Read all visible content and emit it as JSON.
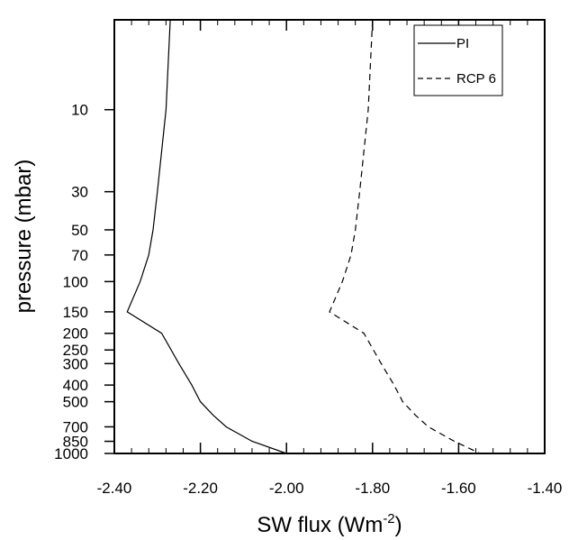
{
  "chart_data": {
    "type": "line",
    "xlabel": "SW flux (Wm",
    "xlabel_superscript": "-2",
    "xlabel_suffix": ")",
    "ylabel": "pressure (mbar)",
    "xlim": [
      -2.4,
      -1.4
    ],
    "ylim": [
      1000,
      3
    ],
    "y_scale": "log",
    "x_ticks": [
      {
        "value": -2.4,
        "label": "-2.40"
      },
      {
        "value": -2.2,
        "label": "-2.20"
      },
      {
        "value": -2.0,
        "label": "-2.00"
      },
      {
        "value": -1.8,
        "label": "-1.80"
      },
      {
        "value": -1.6,
        "label": "-1.60"
      },
      {
        "value": -1.4,
        "label": "-1.40"
      }
    ],
    "y_ticks": [
      {
        "value": 10,
        "label": "10"
      },
      {
        "value": 30,
        "label": "30"
      },
      {
        "value": 50,
        "label": "50"
      },
      {
        "value": 70,
        "label": "70"
      },
      {
        "value": 100,
        "label": "100"
      },
      {
        "value": 150,
        "label": "150"
      },
      {
        "value": 200,
        "label": "200"
      },
      {
        "value": 250,
        "label": "250"
      },
      {
        "value": 300,
        "label": "300"
      },
      {
        "value": 400,
        "label": "400"
      },
      {
        "value": 500,
        "label": "500"
      },
      {
        "value": 700,
        "label": "700"
      },
      {
        "value": 850,
        "label": "850"
      },
      {
        "value": 1000,
        "label": "1000"
      }
    ],
    "grid": false,
    "legend_position": "top-right",
    "series": [
      {
        "name": "PI",
        "style": "solid",
        "points": [
          {
            "x": -2.27,
            "y": 3
          },
          {
            "x": -2.28,
            "y": 10
          },
          {
            "x": -2.3,
            "y": 30
          },
          {
            "x": -2.31,
            "y": 50
          },
          {
            "x": -2.32,
            "y": 70
          },
          {
            "x": -2.34,
            "y": 100
          },
          {
            "x": -2.37,
            "y": 150
          },
          {
            "x": -2.29,
            "y": 200
          },
          {
            "x": -2.25,
            "y": 300
          },
          {
            "x": -2.22,
            "y": 400
          },
          {
            "x": -2.2,
            "y": 500
          },
          {
            "x": -2.17,
            "y": 600
          },
          {
            "x": -2.14,
            "y": 700
          },
          {
            "x": -2.08,
            "y": 850
          },
          {
            "x": -2.0,
            "y": 1000
          }
        ]
      },
      {
        "name": "RCP 6",
        "style": "dashed",
        "points": [
          {
            "x": -1.8,
            "y": 3
          },
          {
            "x": -1.81,
            "y": 10
          },
          {
            "x": -1.83,
            "y": 30
          },
          {
            "x": -1.84,
            "y": 50
          },
          {
            "x": -1.85,
            "y": 70
          },
          {
            "x": -1.87,
            "y": 100
          },
          {
            "x": -1.9,
            "y": 150
          },
          {
            "x": -1.82,
            "y": 200
          },
          {
            "x": -1.78,
            "y": 300
          },
          {
            "x": -1.75,
            "y": 400
          },
          {
            "x": -1.73,
            "y": 500
          },
          {
            "x": -1.7,
            "y": 600
          },
          {
            "x": -1.67,
            "y": 700
          },
          {
            "x": -1.61,
            "y": 850
          },
          {
            "x": -1.55,
            "y": 1000
          }
        ]
      }
    ]
  }
}
